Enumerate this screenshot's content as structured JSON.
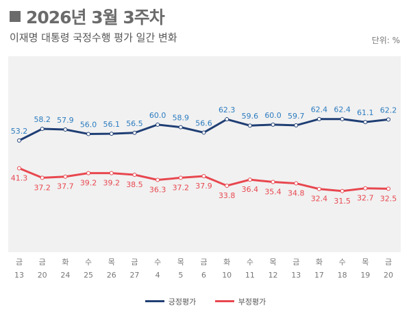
{
  "title": "2026년 3월 3주차",
  "subtitle": "이재명 대통령 국정수행 평가 일간 변화",
  "unit": "단위: %",
  "chart_data": {
    "type": "line",
    "x_days": [
      "금",
      "금",
      "화",
      "수",
      "목",
      "금",
      "수",
      "목",
      "금",
      "화",
      "수",
      "목",
      "금",
      "화",
      "수",
      "목",
      "금"
    ],
    "x_dates": [
      "13",
      "20",
      "24",
      "25",
      "26",
      "27",
      "4",
      "5",
      "6",
      "10",
      "11",
      "12",
      "13",
      "17",
      "18",
      "19",
      "20"
    ],
    "series": [
      {
        "name": "긍정평가",
        "color": "#1f3e74",
        "label_color": "#2b7bbf",
        "values": [
          53.2,
          58.2,
          57.9,
          56.0,
          56.1,
          56.5,
          60.0,
          58.9,
          56.6,
          62.3,
          59.6,
          60.0,
          59.7,
          62.4,
          62.4,
          61.1,
          62.2
        ]
      },
      {
        "name": "부정평가",
        "color": "#e8474f",
        "label_color": "#e8474f",
        "values": [
          41.3,
          37.2,
          37.7,
          39.2,
          39.2,
          38.5,
          36.3,
          37.2,
          37.9,
          33.8,
          36.4,
          35.4,
          34.8,
          32.4,
          31.5,
          32.7,
          32.5
        ]
      }
    ],
    "grid": false,
    "legend": "bottom"
  }
}
